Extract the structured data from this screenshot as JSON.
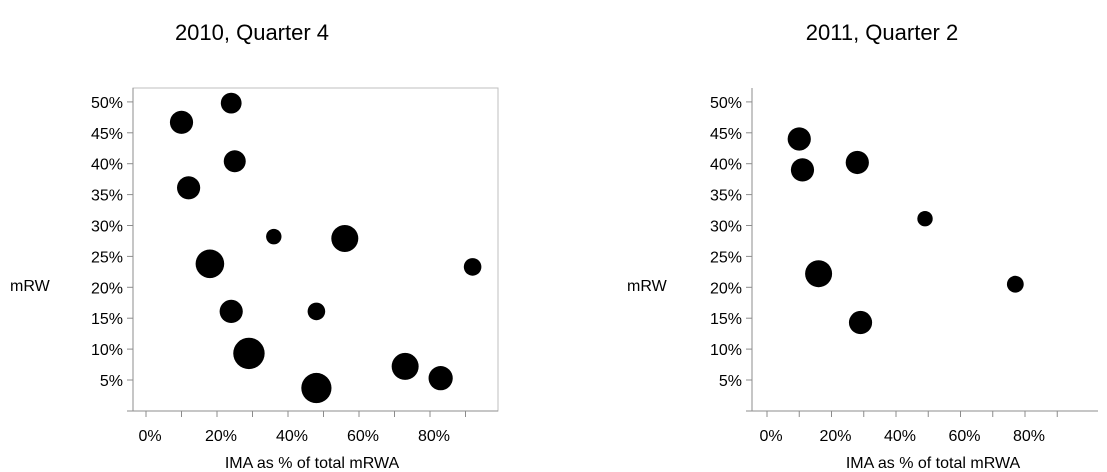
{
  "chart_data": [
    {
      "type": "scatter",
      "title": "2010, Quarter 4",
      "xlabel": "IMA as % of total mRWA",
      "ylabel": "mRW",
      "xlim": [
        0,
        0.92
      ],
      "ylim": [
        0,
        0.52
      ],
      "x_ticks": [
        0,
        0.2,
        0.4,
        0.6,
        0.8
      ],
      "x_tick_labels": [
        "0%",
        "20%",
        "40%",
        "60%",
        "80%"
      ],
      "y_ticks": [
        0.05,
        0.1,
        0.15,
        0.2,
        0.25,
        0.3,
        0.35,
        0.4,
        0.45,
        0.5
      ],
      "y_tick_labels": [
        "5%",
        "10%",
        "15%",
        "20%",
        "25%",
        "30%",
        "35%",
        "40%",
        "45%",
        "50%"
      ],
      "grid": false,
      "legend": "none",
      "marker_color": "#000000",
      "points": [
        {
          "x": 0.1,
          "y": 0.467,
          "size": 3
        },
        {
          "x": 0.24,
          "y": 0.498,
          "size": 2
        },
        {
          "x": 0.25,
          "y": 0.404,
          "size": 2.5
        },
        {
          "x": 0.12,
          "y": 0.361,
          "size": 3
        },
        {
          "x": 0.36,
          "y": 0.282,
          "size": 0.5
        },
        {
          "x": 0.56,
          "y": 0.279,
          "size": 5
        },
        {
          "x": 0.92,
          "y": 0.233,
          "size": 1
        },
        {
          "x": 0.18,
          "y": 0.238,
          "size": 6
        },
        {
          "x": 0.24,
          "y": 0.161,
          "size": 3
        },
        {
          "x": 0.48,
          "y": 0.161,
          "size": 1
        },
        {
          "x": 0.29,
          "y": 0.093,
          "size": 8
        },
        {
          "x": 0.73,
          "y": 0.072,
          "size": 5
        },
        {
          "x": 0.83,
          "y": 0.053,
          "size": 3.5
        },
        {
          "x": 0.48,
          "y": 0.037,
          "size": 7
        }
      ]
    },
    {
      "type": "scatter",
      "title": "2011, Quarter 2",
      "xlabel": "IMA as % of total mRWA",
      "ylabel": "mRW",
      "xlim": [
        0,
        0.92
      ],
      "ylim": [
        0,
        0.52
      ],
      "x_ticks": [
        0,
        0.2,
        0.4,
        0.6,
        0.8
      ],
      "x_tick_labels": [
        "0%",
        "20%",
        "40%",
        "60%",
        "80%"
      ],
      "y_ticks": [
        0.05,
        0.1,
        0.15,
        0.2,
        0.25,
        0.3,
        0.35,
        0.4,
        0.45,
        0.5
      ],
      "y_tick_labels": [
        "5%",
        "10%",
        "15%",
        "20%",
        "25%",
        "30%",
        "35%",
        "40%",
        "45%",
        "50%"
      ],
      "grid": false,
      "legend": "none",
      "marker_color": "#000000",
      "points": [
        {
          "x": 0.1,
          "y": 0.44,
          "size": 3
        },
        {
          "x": 0.11,
          "y": 0.39,
          "size": 3
        },
        {
          "x": 0.28,
          "y": 0.402,
          "size": 3
        },
        {
          "x": 0.49,
          "y": 0.311,
          "size": 0.5
        },
        {
          "x": 0.16,
          "y": 0.222,
          "size": 5
        },
        {
          "x": 0.77,
          "y": 0.205,
          "size": 0.8
        },
        {
          "x": 0.29,
          "y": 0.143,
          "size": 3
        }
      ]
    }
  ]
}
